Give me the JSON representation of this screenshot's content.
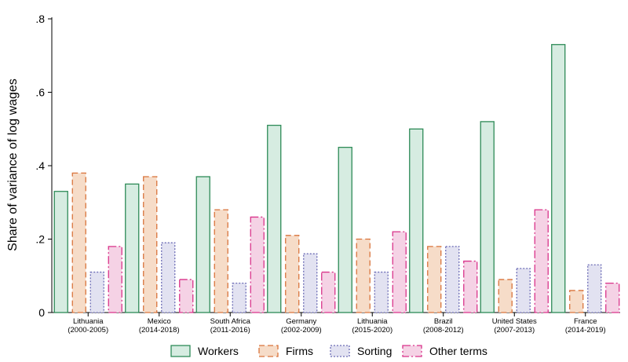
{
  "chart_data": {
    "type": "bar",
    "ylabel": "Share of variance of log wages",
    "xlabel": "",
    "ylim": [
      0,
      0.8
    ],
    "yticks": [
      0,
      0.2,
      0.4,
      0.6,
      0.8
    ],
    "ytick_labels": [
      "0",
      ".2",
      ".4",
      ".6",
      ".8"
    ],
    "grid": false,
    "legend_position": "bottom",
    "categories": [
      {
        "name": "Lithuania",
        "years": "(2000-2005)"
      },
      {
        "name": "Mexico",
        "years": "(2014-2018)"
      },
      {
        "name": "South Africa",
        "years": "(2011-2016)"
      },
      {
        "name": "Germany",
        "years": "(2002-2009)"
      },
      {
        "name": "Lithuania",
        "years": "(2015-2020)"
      },
      {
        "name": "Brazil",
        "years": "(2008-2012)"
      },
      {
        "name": "United States",
        "years": "(2007-2013)"
      },
      {
        "name": "France",
        "years": "(2014-2019)"
      }
    ],
    "series": [
      {
        "name": "Workers",
        "stroke": "#2e8b57",
        "fill": "#d6ece1",
        "dash": "solid",
        "values": [
          0.33,
          0.35,
          0.37,
          0.51,
          0.45,
          0.5,
          0.52,
          0.73
        ]
      },
      {
        "name": "Firms",
        "stroke": "#d9733b",
        "fill": "#f6dcc8",
        "dash": "long-dash",
        "values": [
          0.38,
          0.37,
          0.28,
          0.21,
          0.2,
          0.18,
          0.09,
          0.06
        ]
      },
      {
        "name": "Sorting",
        "stroke": "#6b6bb5",
        "fill": "#e2e2f1",
        "dash": "dotted",
        "values": [
          0.11,
          0.19,
          0.08,
          0.16,
          0.11,
          0.18,
          0.12,
          0.13
        ]
      },
      {
        "name": "Other terms",
        "stroke": "#d9338a",
        "fill": "#f5d2e5",
        "dash": "long-dash-dot",
        "values": [
          0.18,
          0.09,
          0.26,
          0.11,
          0.22,
          0.14,
          0.28,
          0.08
        ]
      }
    ]
  }
}
